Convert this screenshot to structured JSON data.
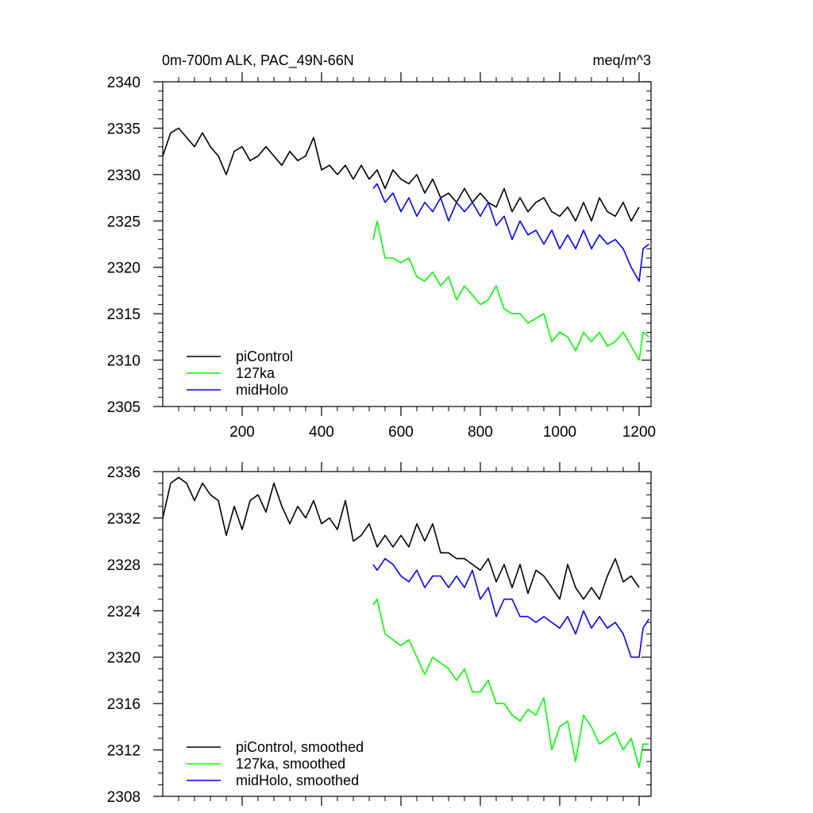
{
  "chart_data": [
    {
      "type": "line",
      "title": "0m-700m ALK, PAC_49N-66N",
      "units": "meq/m^3",
      "xlim": [
        0,
        1230
      ],
      "ylim": [
        2305,
        2340
      ],
      "xticks": [
        200,
        400,
        600,
        800,
        1000,
        1200
      ],
      "xtick_labels": [
        "200",
        "400",
        "600",
        "800",
        "1000",
        "1200"
      ],
      "yticks": [
        2305,
        2310,
        2315,
        2320,
        2325,
        2330,
        2335,
        2340
      ],
      "ytick_labels": [
        "2305",
        "2310",
        "2315",
        "2320",
        "2325",
        "2330",
        "2335",
        "2340"
      ],
      "legend_position": "bottom-left",
      "series": [
        {
          "name": "piControl",
          "color": "#000000",
          "x": [
            0,
            20,
            40,
            60,
            80,
            100,
            120,
            140,
            160,
            180,
            200,
            220,
            240,
            260,
            280,
            300,
            320,
            340,
            360,
            380,
            400,
            420,
            440,
            460,
            480,
            500,
            520,
            540,
            560,
            580,
            600,
            620,
            640,
            660,
            680,
            700,
            720,
            740,
            760,
            780,
            800,
            820,
            840,
            860,
            880,
            900,
            920,
            940,
            960,
            980,
            1000,
            1020,
            1040,
            1060,
            1080,
            1100,
            1120,
            1140,
            1160,
            1180,
            1200
          ],
          "y": [
            2332,
            2334.5,
            2335,
            2334,
            2333,
            2334.5,
            2333,
            2332,
            2330,
            2332.5,
            2333,
            2331.5,
            2332,
            2333,
            2332,
            2331,
            2332.5,
            2331.5,
            2332,
            2334,
            2330.5,
            2331,
            2330,
            2331,
            2329.5,
            2331,
            2329.5,
            2330.5,
            2328.5,
            2330.5,
            2329.5,
            2329,
            2330,
            2328,
            2329.5,
            2327.5,
            2328,
            2327,
            2328.5,
            2327,
            2328,
            2327,
            2326.5,
            2328.5,
            2326,
            2327.5,
            2326,
            2327,
            2327.5,
            2326,
            2325.5,
            2326.5,
            2325,
            2327,
            2325,
            2327.5,
            2326,
            2325.5,
            2327,
            2325,
            2326.5
          ]
        },
        {
          "name": "127ka",
          "color": "#00ff00",
          "x": [
            530,
            540,
            560,
            580,
            600,
            620,
            640,
            660,
            680,
            700,
            720,
            740,
            760,
            780,
            800,
            820,
            840,
            860,
            880,
            900,
            920,
            940,
            960,
            980,
            1000,
            1020,
            1040,
            1060,
            1080,
            1100,
            1120,
            1140,
            1160,
            1180,
            1200,
            1210,
            1225
          ],
          "y": [
            2323,
            2325,
            2321,
            2321,
            2320.5,
            2321,
            2319,
            2318.5,
            2319.5,
            2318,
            2319,
            2316.5,
            2318,
            2317,
            2316,
            2316.5,
            2318,
            2315.5,
            2315,
            2315,
            2314,
            2314.5,
            2315,
            2312,
            2313,
            2312.5,
            2311,
            2313,
            2312,
            2313,
            2311.5,
            2312,
            2313,
            2311.5,
            2310,
            2313,
            2312.5
          ]
        },
        {
          "name": "midHolo",
          "color": "#0000ff",
          "x": [
            530,
            540,
            560,
            580,
            600,
            620,
            640,
            660,
            680,
            700,
            720,
            740,
            760,
            780,
            800,
            820,
            840,
            860,
            880,
            900,
            920,
            940,
            960,
            980,
            1000,
            1020,
            1040,
            1060,
            1080,
            1100,
            1120,
            1140,
            1160,
            1180,
            1200,
            1210,
            1225
          ],
          "y": [
            2328.5,
            2329,
            2327,
            2328,
            2326,
            2327.5,
            2325.5,
            2327,
            2326,
            2327.5,
            2325,
            2327,
            2326,
            2327,
            2325.5,
            2327,
            2324.5,
            2325.5,
            2323,
            2325,
            2323.5,
            2324,
            2322.5,
            2324,
            2322,
            2323.5,
            2322,
            2324,
            2322,
            2323.5,
            2322.5,
            2323,
            2322,
            2320,
            2318.5,
            2322,
            2322.5
          ]
        }
      ]
    },
    {
      "type": "line",
      "xlim": [
        0,
        1230
      ],
      "ylim": [
        2308,
        2336
      ],
      "xticks": [
        200,
        400,
        600,
        800,
        1000,
        1200
      ],
      "yticks": [
        2308,
        2312,
        2316,
        2320,
        2324,
        2328,
        2332,
        2336
      ],
      "ytick_labels": [
        "2308",
        "2312",
        "2316",
        "2320",
        "2324",
        "2328",
        "2332",
        "2336"
      ],
      "legend_position": "bottom-left",
      "series": [
        {
          "name": "piControl, smoothed",
          "color": "#000000",
          "x": [
            0,
            20,
            40,
            60,
            80,
            100,
            120,
            140,
            160,
            180,
            200,
            220,
            240,
            260,
            280,
            300,
            320,
            340,
            360,
            380,
            400,
            420,
            440,
            460,
            480,
            500,
            520,
            540,
            560,
            580,
            600,
            620,
            640,
            660,
            680,
            700,
            720,
            740,
            760,
            780,
            800,
            820,
            840,
            860,
            880,
            900,
            920,
            940,
            960,
            980,
            1000,
            1020,
            1040,
            1060,
            1080,
            1100,
            1120,
            1140,
            1160,
            1180,
            1200
          ],
          "y": [
            2332,
            2335,
            2335.5,
            2335,
            2333.5,
            2335,
            2334,
            2333.5,
            2330.5,
            2333,
            2331,
            2333.5,
            2334,
            2332.5,
            2335,
            2333,
            2331.5,
            2333,
            2332,
            2333.5,
            2331.5,
            2332,
            2331,
            2333.5,
            2330,
            2330.5,
            2331.5,
            2329.5,
            2330.5,
            2329.5,
            2330.5,
            2329.5,
            2331.5,
            2330,
            2331.5,
            2329,
            2329,
            2328.5,
            2328.5,
            2328,
            2327.5,
            2328.5,
            2326.5,
            2328,
            2326,
            2328,
            2325.5,
            2327.5,
            2327,
            2326,
            2325,
            2328,
            2326,
            2325,
            2326,
            2325,
            2327,
            2328.5,
            2326.5,
            2327,
            2326
          ]
        },
        {
          "name": "127ka, smoothed",
          "color": "#00ff00",
          "x": [
            530,
            540,
            560,
            580,
            600,
            620,
            640,
            660,
            680,
            700,
            720,
            740,
            760,
            780,
            800,
            820,
            840,
            860,
            880,
            900,
            920,
            940,
            960,
            980,
            1000,
            1020,
            1040,
            1060,
            1080,
            1100,
            1120,
            1140,
            1160,
            1180,
            1200,
            1210,
            1225
          ],
          "y": [
            2324.5,
            2325,
            2322,
            2321.5,
            2321,
            2321.5,
            2320,
            2318.5,
            2320,
            2319.5,
            2319,
            2318,
            2319,
            2317,
            2317,
            2318,
            2316,
            2316,
            2315,
            2314.5,
            2315.5,
            2315,
            2316.5,
            2312,
            2314,
            2314.5,
            2311,
            2315,
            2314,
            2312.5,
            2313,
            2313.5,
            2312,
            2313,
            2310.5,
            2312.5,
            2312.5
          ]
        },
        {
          "name": "midHolo, smoothed",
          "color": "#0000ff",
          "x": [
            530,
            540,
            560,
            580,
            600,
            620,
            640,
            660,
            680,
            700,
            720,
            740,
            760,
            780,
            800,
            820,
            840,
            860,
            880,
            900,
            920,
            940,
            960,
            980,
            1000,
            1020,
            1040,
            1060,
            1080,
            1100,
            1120,
            1140,
            1160,
            1180,
            1200,
            1210,
            1225
          ],
          "y": [
            2328,
            2327.5,
            2328.5,
            2328,
            2327,
            2326.5,
            2327.5,
            2326,
            2327,
            2327,
            2326,
            2327,
            2326,
            2327.5,
            2325,
            2326,
            2323.5,
            2325,
            2325,
            2323.5,
            2323.5,
            2323,
            2323.5,
            2323,
            2322.5,
            2323.5,
            2322,
            2324,
            2322.5,
            2323.5,
            2322.5,
            2323,
            2322,
            2320,
            2320,
            2322.5,
            2323.3
          ]
        }
      ]
    }
  ]
}
